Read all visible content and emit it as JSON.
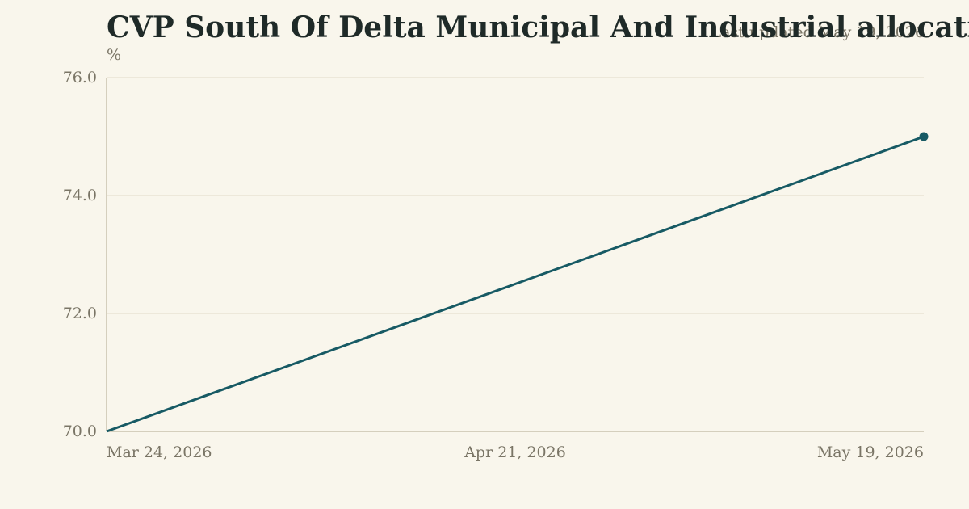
{
  "chart_data": {
    "type": "line",
    "title": "CVP South Of Delta Municipal And Industrial allocation",
    "subtitle": "Last updated May 19, 2026",
    "unit": "%",
    "x": [
      "Mar 24, 2026",
      "May 19, 2026"
    ],
    "x_ticks": [
      "Mar 24, 2026",
      "Apr 21, 2026",
      "May 19, 2026"
    ],
    "y_ticks": [
      "70.0",
      "72.0",
      "74.0",
      "76.0"
    ],
    "ylim": [
      70,
      76
    ],
    "xlim": [
      "2026-03-24",
      "2026-05-19"
    ],
    "grid": true,
    "series": [
      {
        "values": [
          70,
          75
        ],
        "color": "#175a64"
      }
    ]
  }
}
